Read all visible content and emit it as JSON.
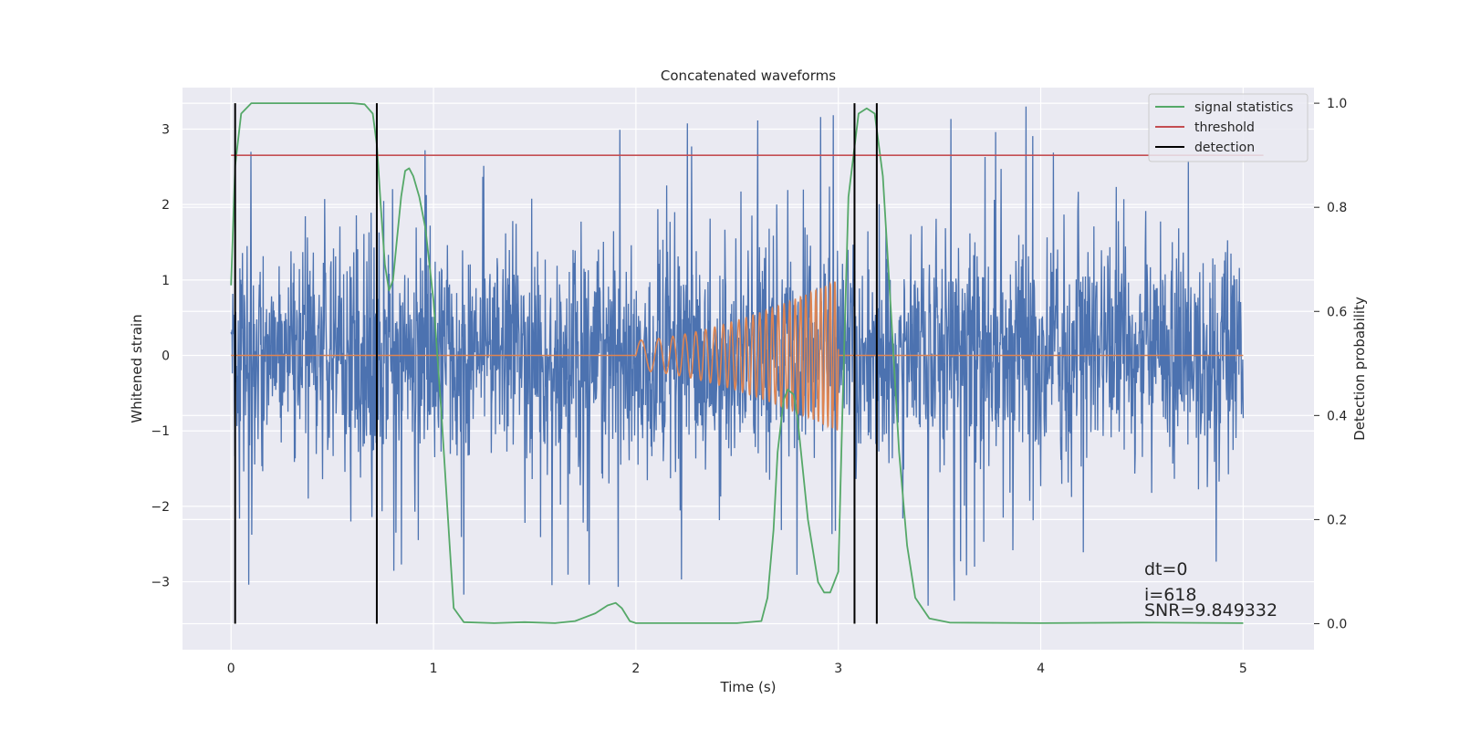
{
  "chart_data": {
    "type": "line",
    "title": "Concatenated waveforms",
    "xlabel": "Time (s)",
    "ylabel": "Whitened strain",
    "ylabel_right": "Detection probability",
    "xlim": [
      -0.24,
      5.35
    ],
    "ylim": [
      -3.9,
      3.55
    ],
    "ylim_right": [
      -0.05,
      1.03
    ],
    "x_ticks": [
      0,
      1,
      2,
      3,
      4,
      5
    ],
    "y_ticks": [
      -3,
      -2,
      -1,
      0,
      1,
      2,
      3
    ],
    "y_ticks_right": [
      0.0,
      0.2,
      0.4,
      0.6,
      0.8,
      1.0
    ],
    "x_tick_labels": [
      "0",
      "1",
      "2",
      "3",
      "4",
      "5"
    ],
    "y_tick_labels": [
      "−3",
      "−2",
      "−1",
      "0",
      "1",
      "2",
      "3"
    ],
    "y_tick_labels_right": [
      "0.0",
      "0.2",
      "0.4",
      "0.6",
      "0.8",
      "1.0"
    ],
    "grid": true,
    "legend_position": "top-right",
    "colors": {
      "strain": "#4c72b0",
      "injection": "#dd8452",
      "signal_statistics": "#55a868",
      "threshold": "#c44e52",
      "detection": "#000000",
      "background": "#eaeaf2",
      "grid": "#ffffff"
    },
    "series": [
      {
        "name": "signal statistics",
        "axis": "right",
        "x": [
          0.0,
          0.02,
          0.05,
          0.1,
          0.2,
          0.4,
          0.6,
          0.66,
          0.7,
          0.72,
          0.74,
          0.76,
          0.78,
          0.8,
          0.82,
          0.84,
          0.86,
          0.88,
          0.9,
          0.93,
          0.96,
          1.0,
          1.04,
          1.08,
          1.1,
          1.15,
          1.3,
          1.45,
          1.6,
          1.7,
          1.8,
          1.86,
          1.9,
          1.93,
          1.97,
          2.0,
          2.2,
          2.5,
          2.62,
          2.65,
          2.68,
          2.7,
          2.73,
          2.75,
          2.78,
          2.8,
          2.85,
          2.9,
          2.93,
          2.96,
          3.0,
          3.02,
          3.05,
          3.1,
          3.14,
          3.18,
          3.22,
          3.26,
          3.3,
          3.34,
          3.38,
          3.45,
          3.55,
          4.0,
          4.5,
          5.0
        ],
        "y": [
          0.65,
          0.88,
          0.98,
          1.0,
          1.0,
          1.0,
          1.0,
          0.998,
          0.98,
          0.92,
          0.8,
          0.69,
          0.64,
          0.66,
          0.74,
          0.82,
          0.87,
          0.875,
          0.86,
          0.82,
          0.76,
          0.62,
          0.4,
          0.15,
          0.03,
          0.003,
          0.001,
          0.003,
          0.001,
          0.005,
          0.02,
          0.035,
          0.04,
          0.03,
          0.005,
          0.001,
          0.001,
          0.001,
          0.005,
          0.05,
          0.18,
          0.33,
          0.43,
          0.45,
          0.44,
          0.39,
          0.2,
          0.08,
          0.06,
          0.06,
          0.1,
          0.4,
          0.82,
          0.98,
          0.99,
          0.98,
          0.86,
          0.6,
          0.33,
          0.15,
          0.05,
          0.01,
          0.002,
          0.001,
          0.002,
          0.001
        ]
      },
      {
        "name": "threshold",
        "axis": "right",
        "x": [
          0.0,
          5.1
        ],
        "y": [
          0.9,
          0.9
        ]
      },
      {
        "name": "detection",
        "axis": "right",
        "x": [
          0.02,
          0.72,
          3.08,
          3.19
        ],
        "y_range": [
          0.0,
          1.0
        ]
      }
    ],
    "strain": {
      "x_range": [
        0.0,
        5.0
      ],
      "typical_amplitude": 0.75,
      "peak_amplitude": 3.35
    },
    "injection": {
      "x_range": [
        2.0,
        3.0
      ],
      "start_amplitude": 0.2,
      "end_amplitude": 1.0,
      "start_frequency_hz": 9,
      "end_frequency_hz": 45
    },
    "annotations": [
      "dt=0",
      "i=618",
      "SNR=9.849332"
    ]
  }
}
